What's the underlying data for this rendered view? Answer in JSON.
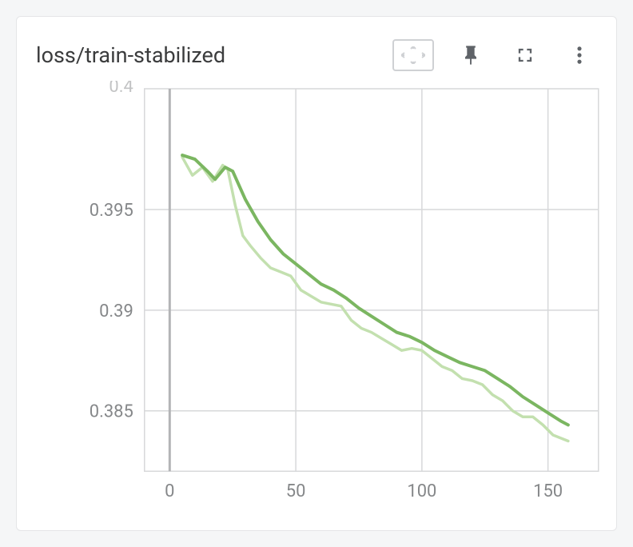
{
  "card": {
    "title": "loss/train-stabilized"
  },
  "chart": {
    "type": "line",
    "background_color": "#ffffff",
    "grid_color": "#d7d8da",
    "zero_line_color": "#b3b4b6",
    "tick_label_color": "#858789",
    "tick_fontsize": 22,
    "xlim": [
      -10,
      170
    ],
    "ylim": [
      0.382,
      0.401
    ],
    "x_ticks": [
      0,
      50,
      100,
      150
    ],
    "y_ticks": [
      0.385,
      0.39,
      0.395
    ],
    "y_tick_labels": [
      "0.385",
      "0.39",
      "0.395"
    ],
    "y_top_clipped_label": "0.4",
    "series": [
      {
        "id": "main",
        "color": "#7bb661",
        "stroke_width": 4,
        "opacity": 1.0,
        "points": [
          [
            5,
            0.3977
          ],
          [
            10,
            0.3975
          ],
          [
            15,
            0.3969
          ],
          [
            18,
            0.3965
          ],
          [
            22,
            0.3971
          ],
          [
            25,
            0.3969
          ],
          [
            30,
            0.3955
          ],
          [
            35,
            0.3944
          ],
          [
            40,
            0.3935
          ],
          [
            45,
            0.3928
          ],
          [
            50,
            0.3923
          ],
          [
            55,
            0.3918
          ],
          [
            60,
            0.3913
          ],
          [
            65,
            0.391
          ],
          [
            70,
            0.3906
          ],
          [
            75,
            0.3901
          ],
          [
            80,
            0.3897
          ],
          [
            85,
            0.3893
          ],
          [
            90,
            0.3889
          ],
          [
            95,
            0.3887
          ],
          [
            100,
            0.3884
          ],
          [
            105,
            0.388
          ],
          [
            110,
            0.3877
          ],
          [
            115,
            0.3874
          ],
          [
            120,
            0.3872
          ],
          [
            125,
            0.387
          ],
          [
            130,
            0.3866
          ],
          [
            135,
            0.3862
          ],
          [
            140,
            0.3857
          ],
          [
            145,
            0.3853
          ],
          [
            150,
            0.3849
          ],
          [
            155,
            0.3845
          ],
          [
            158,
            0.3843
          ]
        ]
      },
      {
        "id": "faint",
        "color": "#c3e0af",
        "stroke_width": 3.5,
        "opacity": 1.0,
        "points": [
          [
            5,
            0.3976
          ],
          [
            9,
            0.3967
          ],
          [
            13,
            0.3971
          ],
          [
            17,
            0.3964
          ],
          [
            21,
            0.3972
          ],
          [
            23,
            0.397
          ],
          [
            26,
            0.3952
          ],
          [
            29,
            0.3937
          ],
          [
            32,
            0.3932
          ],
          [
            36,
            0.3926
          ],
          [
            40,
            0.3921
          ],
          [
            44,
            0.3919
          ],
          [
            48,
            0.3917
          ],
          [
            52,
            0.391
          ],
          [
            56,
            0.3907
          ],
          [
            60,
            0.3904
          ],
          [
            64,
            0.3903
          ],
          [
            68,
            0.3902
          ],
          [
            72,
            0.3895
          ],
          [
            76,
            0.3891
          ],
          [
            80,
            0.3889
          ],
          [
            84,
            0.3886
          ],
          [
            88,
            0.3883
          ],
          [
            92,
            0.388
          ],
          [
            96,
            0.3881
          ],
          [
            100,
            0.388
          ],
          [
            104,
            0.3876
          ],
          [
            108,
            0.3872
          ],
          [
            112,
            0.387
          ],
          [
            116,
            0.3866
          ],
          [
            120,
            0.3865
          ],
          [
            124,
            0.3863
          ],
          [
            128,
            0.3858
          ],
          [
            132,
            0.3855
          ],
          [
            136,
            0.385
          ],
          [
            140,
            0.3847
          ],
          [
            144,
            0.3847
          ],
          [
            148,
            0.3843
          ],
          [
            152,
            0.3838
          ],
          [
            156,
            0.3836
          ],
          [
            158,
            0.3835
          ]
        ]
      }
    ]
  }
}
